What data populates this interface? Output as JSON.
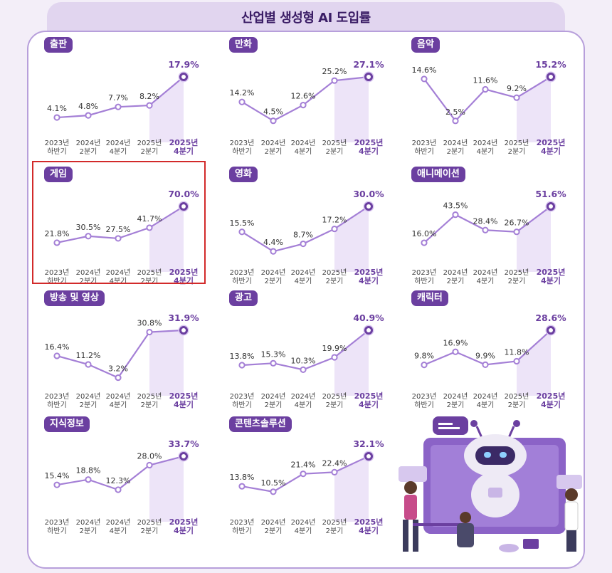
{
  "page_title": "산업별 생성형 AI 도입률",
  "colors": {
    "accent": "#6b3fa0",
    "line": "#a47fd6",
    "highlight_box": "#d22a2a"
  },
  "x_labels": [
    [
      "2023년",
      "하반기"
    ],
    [
      "2024년",
      "2분기"
    ],
    [
      "2024년",
      "4분기"
    ],
    [
      "2025년",
      "2분기"
    ],
    [
      "2025년",
      "4분기"
    ]
  ],
  "chart_data": [
    {
      "type": "line",
      "title": "출판",
      "values": [
        4.1,
        4.8,
        7.7,
        8.2,
        17.9
      ],
      "labels": [
        "4.1%",
        "4.8%",
        "7.7%",
        "8.2%",
        "17.9%"
      ]
    },
    {
      "type": "line",
      "title": "만화",
      "values": [
        14.2,
        4.5,
        12.6,
        25.2,
        27.1
      ],
      "labels": [
        "14.2%",
        "4.5%",
        "12.6%",
        "25.2%",
        "27.1%"
      ]
    },
    {
      "type": "line",
      "title": "음악",
      "values": [
        14.6,
        2.5,
        11.6,
        9.2,
        15.2
      ],
      "labels": [
        "14.6%",
        "2.5%",
        "11.6%",
        "9.2%",
        "15.2%"
      ]
    },
    {
      "type": "line",
      "title": "게임",
      "highlighted": true,
      "values": [
        21.8,
        30.5,
        27.5,
        41.7,
        70.0
      ],
      "labels": [
        "21.8%",
        "30.5%",
        "27.5%",
        "41.7%",
        "70.0%"
      ]
    },
    {
      "type": "line",
      "title": "영화",
      "values": [
        15.5,
        4.4,
        8.7,
        17.2,
        30.0
      ],
      "labels": [
        "15.5%",
        "4.4%",
        "8.7%",
        "17.2%",
        "30.0%"
      ]
    },
    {
      "type": "line",
      "title": "애니메이션",
      "values": [
        16.0,
        43.5,
        28.4,
        26.7,
        51.6
      ],
      "labels": [
        "16.0%",
        "43.5%",
        "28.4%",
        "26.7%",
        "51.6%"
      ]
    },
    {
      "type": "line",
      "title": "방송 및 영상",
      "values": [
        16.4,
        11.2,
        3.2,
        30.8,
        31.9
      ],
      "labels": [
        "16.4%",
        "11.2%",
        "3.2%",
        "30.8%",
        "31.9%"
      ]
    },
    {
      "type": "line",
      "title": "광고",
      "values": [
        13.8,
        15.3,
        10.3,
        19.9,
        40.9
      ],
      "labels": [
        "13.8%",
        "15.3%",
        "10.3%",
        "19.9%",
        "40.9%"
      ]
    },
    {
      "type": "line",
      "title": "캐릭터",
      "values": [
        9.8,
        16.9,
        9.9,
        11.8,
        28.6
      ],
      "labels": [
        "9.8%",
        "16.9%",
        "9.9%",
        "11.8%",
        "28.6%"
      ]
    },
    {
      "type": "line",
      "title": "지식정보",
      "values": [
        15.4,
        18.8,
        12.3,
        28.0,
        33.7
      ],
      "labels": [
        "15.4%",
        "18.8%",
        "12.3%",
        "28.0%",
        "33.7%"
      ]
    },
    {
      "type": "line",
      "title": "콘텐츠솔루션",
      "values": [
        13.8,
        10.5,
        21.4,
        22.4,
        32.1
      ],
      "labels": [
        "13.8%",
        "10.5%",
        "21.4%",
        "22.4%",
        "32.1%"
      ]
    }
  ],
  "illustration": {
    "name": "robot-with-people-illustration"
  }
}
